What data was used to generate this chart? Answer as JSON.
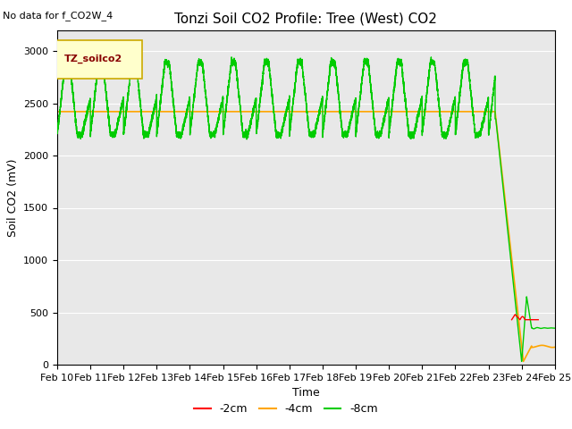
{
  "title": "Tonzi Soil CO2 Profile: Tree (West) CO2",
  "no_data_text": "No data for f_CO2W_4",
  "xlabel": "Time",
  "ylabel": "Soil CO2 (mV)",
  "ylim": [
    0,
    3200
  ],
  "yticks": [
    0,
    500,
    1000,
    1500,
    2000,
    2500,
    3000
  ],
  "legend_label": "TZ_soilco2",
  "legend_entries": [
    "-2cm",
    "-4cm",
    "-8cm"
  ],
  "legend_colors": [
    "#ff0000",
    "#ffa500",
    "#00cc00"
  ],
  "bg_color": "#e8e8e8",
  "fig_color": "#ffffff",
  "xtick_labels": [
    "Feb 10",
    "Feb 11",
    "Feb 12",
    "Feb 13",
    "Feb 14",
    "Feb 15",
    "Feb 16",
    "Feb 17",
    "Feb 18",
    "Feb 19",
    "Feb 20",
    "Feb 21",
    "Feb 22",
    "Feb 23",
    "Feb 24",
    "Feb 25"
  ],
  "title_fontsize": 11,
  "axis_label_fontsize": 9,
  "tick_fontsize": 8
}
